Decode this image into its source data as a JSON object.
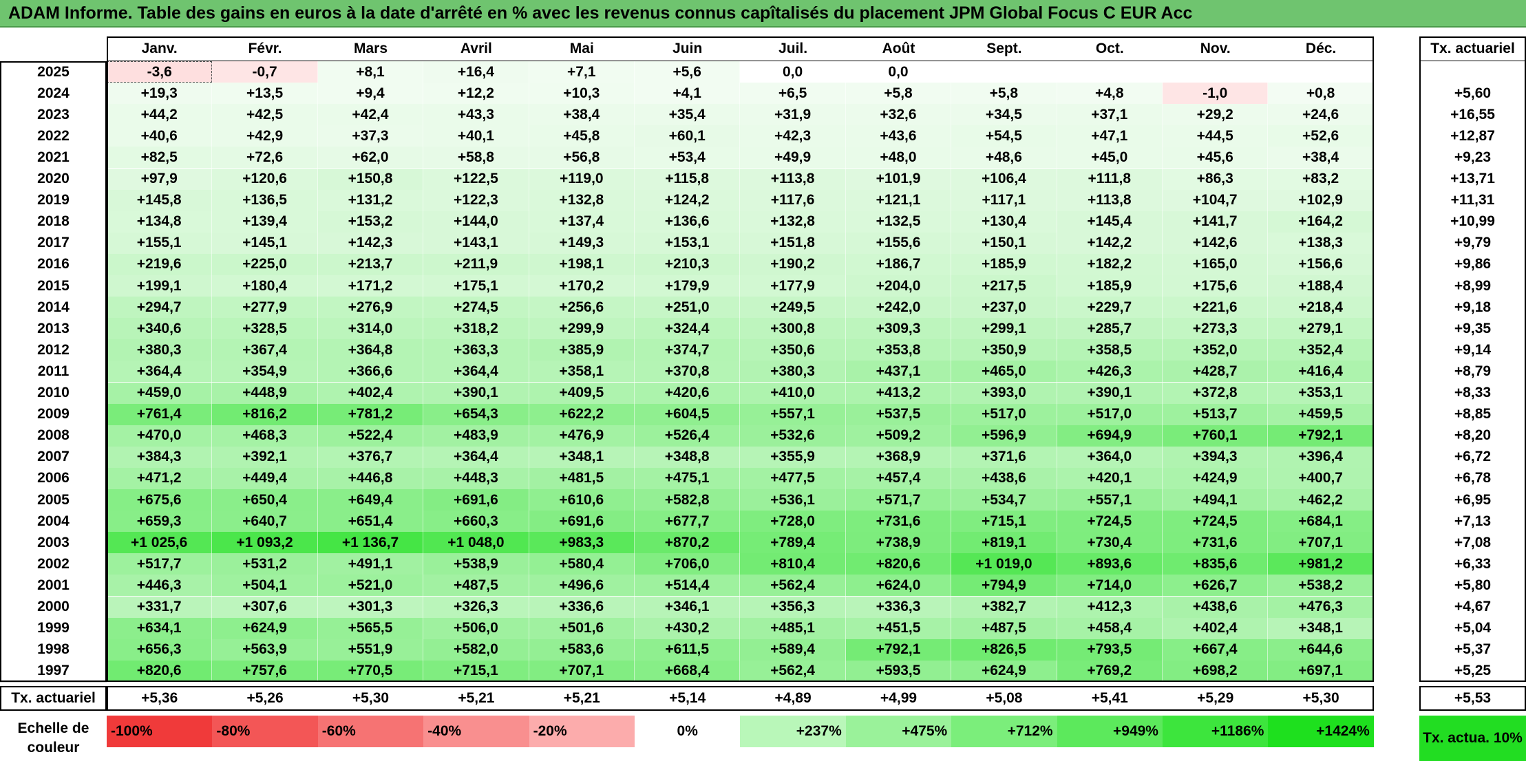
{
  "title": "ADAM Informe. Table des gains en euros à la date d'arrêté en % avec les revenus connus capîtalisés du placement JPM Global Focus C EUR Acc",
  "chart_data": {
    "type": "table",
    "columns": [
      "Janv.",
      "Févr.",
      "Mars",
      "Avril",
      "Mai",
      "Juin",
      "Juil.",
      "Août",
      "Sept.",
      "Oct.",
      "Nov.",
      "Déc."
    ],
    "rate_header": "Tx. actuariel",
    "rows": [
      {
        "year": "2025",
        "cells": [
          "-3,6",
          "-0,7",
          "+8,1",
          "+16,4",
          "+7,1",
          "+5,6",
          "0,0",
          "0,0",
          "",
          "",
          "",
          ""
        ],
        "rate": ""
      },
      {
        "year": "2024",
        "cells": [
          "+19,3",
          "+13,5",
          "+9,4",
          "+12,2",
          "+10,3",
          "+4,1",
          "+6,5",
          "+5,8",
          "+5,8",
          "+4,8",
          "-1,0",
          "+0,8"
        ],
        "rate": "+5,60"
      },
      {
        "year": "2023",
        "cells": [
          "+44,2",
          "+42,5",
          "+42,4",
          "+43,3",
          "+38,4",
          "+35,4",
          "+31,9",
          "+32,6",
          "+34,5",
          "+37,1",
          "+29,2",
          "+24,6"
        ],
        "rate": "+16,55"
      },
      {
        "year": "2022",
        "cells": [
          "+40,6",
          "+42,9",
          "+37,3",
          "+40,1",
          "+45,8",
          "+60,1",
          "+42,3",
          "+43,6",
          "+54,5",
          "+47,1",
          "+44,5",
          "+52,6"
        ],
        "rate": "+12,87"
      },
      {
        "year": "2021",
        "cells": [
          "+82,5",
          "+72,6",
          "+62,0",
          "+58,8",
          "+56,8",
          "+53,4",
          "+49,9",
          "+48,0",
          "+48,6",
          "+45,0",
          "+45,6",
          "+38,4"
        ],
        "rate": "+9,23"
      },
      {
        "year": "2020",
        "cells": [
          "+97,9",
          "+120,6",
          "+150,8",
          "+122,5",
          "+119,0",
          "+115,8",
          "+113,8",
          "+101,9",
          "+106,4",
          "+111,8",
          "+86,3",
          "+83,2"
        ],
        "rate": "+13,71"
      },
      {
        "year": "2019",
        "cells": [
          "+145,8",
          "+136,5",
          "+131,2",
          "+122,3",
          "+132,8",
          "+124,2",
          "+117,6",
          "+121,1",
          "+117,1",
          "+113,8",
          "+104,7",
          "+102,9"
        ],
        "rate": "+11,31"
      },
      {
        "year": "2018",
        "cells": [
          "+134,8",
          "+139,4",
          "+153,2",
          "+144,0",
          "+137,4",
          "+136,6",
          "+132,8",
          "+132,5",
          "+130,4",
          "+145,4",
          "+141,7",
          "+164,2"
        ],
        "rate": "+10,99"
      },
      {
        "year": "2017",
        "cells": [
          "+155,1",
          "+145,1",
          "+142,3",
          "+143,1",
          "+149,3",
          "+153,1",
          "+151,8",
          "+155,6",
          "+150,1",
          "+142,2",
          "+142,6",
          "+138,3"
        ],
        "rate": "+9,79"
      },
      {
        "year": "2016",
        "cells": [
          "+219,6",
          "+225,0",
          "+213,7",
          "+211,9",
          "+198,1",
          "+210,3",
          "+190,2",
          "+186,7",
          "+185,9",
          "+182,2",
          "+165,0",
          "+156,6"
        ],
        "rate": "+9,86"
      },
      {
        "year": "2015",
        "cells": [
          "+199,1",
          "+180,4",
          "+171,2",
          "+175,1",
          "+170,2",
          "+179,9",
          "+177,9",
          "+204,0",
          "+217,5",
          "+185,9",
          "+175,6",
          "+188,4"
        ],
        "rate": "+8,99"
      },
      {
        "year": "2014",
        "cells": [
          "+294,7",
          "+277,9",
          "+276,9",
          "+274,5",
          "+256,6",
          "+251,0",
          "+249,5",
          "+242,0",
          "+237,0",
          "+229,7",
          "+221,6",
          "+218,4"
        ],
        "rate": "+9,18"
      },
      {
        "year": "2013",
        "cells": [
          "+340,6",
          "+328,5",
          "+314,0",
          "+318,2",
          "+299,9",
          "+324,4",
          "+300,8",
          "+309,3",
          "+299,1",
          "+285,7",
          "+273,3",
          "+279,1"
        ],
        "rate": "+9,35"
      },
      {
        "year": "2012",
        "cells": [
          "+380,3",
          "+367,4",
          "+364,8",
          "+363,3",
          "+385,9",
          "+374,7",
          "+350,6",
          "+353,8",
          "+350,9",
          "+358,5",
          "+352,0",
          "+352,4"
        ],
        "rate": "+9,14"
      },
      {
        "year": "2011",
        "cells": [
          "+364,4",
          "+354,9",
          "+366,6",
          "+364,4",
          "+358,1",
          "+370,8",
          "+380,3",
          "+437,1",
          "+465,0",
          "+426,3",
          "+428,7",
          "+416,4"
        ],
        "rate": "+8,79"
      },
      {
        "year": "2010",
        "cells": [
          "+459,0",
          "+448,9",
          "+402,4",
          "+390,1",
          "+409,5",
          "+420,6",
          "+410,0",
          "+413,2",
          "+393,0",
          "+390,1",
          "+372,8",
          "+353,1"
        ],
        "rate": "+8,33"
      },
      {
        "year": "2009",
        "cells": [
          "+761,4",
          "+816,2",
          "+781,2",
          "+654,3",
          "+622,2",
          "+604,5",
          "+557,1",
          "+537,5",
          "+517,0",
          "+517,0",
          "+513,7",
          "+459,5"
        ],
        "rate": "+8,85"
      },
      {
        "year": "2008",
        "cells": [
          "+470,0",
          "+468,3",
          "+522,4",
          "+483,9",
          "+476,9",
          "+526,4",
          "+532,6",
          "+509,2",
          "+596,9",
          "+694,9",
          "+760,1",
          "+792,1"
        ],
        "rate": "+8,20"
      },
      {
        "year": "2007",
        "cells": [
          "+384,3",
          "+392,1",
          "+376,7",
          "+364,4",
          "+348,1",
          "+348,8",
          "+355,9",
          "+368,9",
          "+371,6",
          "+364,0",
          "+394,3",
          "+396,4"
        ],
        "rate": "+6,72"
      },
      {
        "year": "2006",
        "cells": [
          "+471,2",
          "+449,4",
          "+446,8",
          "+448,3",
          "+481,5",
          "+475,1",
          "+477,5",
          "+457,4",
          "+438,6",
          "+420,1",
          "+424,9",
          "+400,7"
        ],
        "rate": "+6,78"
      },
      {
        "year": "2005",
        "cells": [
          "+675,6",
          "+650,4",
          "+649,4",
          "+691,6",
          "+610,6",
          "+582,8",
          "+536,1",
          "+571,7",
          "+534,7",
          "+557,1",
          "+494,1",
          "+462,2"
        ],
        "rate": "+6,95"
      },
      {
        "year": "2004",
        "cells": [
          "+659,3",
          "+640,7",
          "+651,4",
          "+660,3",
          "+691,6",
          "+677,7",
          "+728,0",
          "+731,6",
          "+715,1",
          "+724,5",
          "+724,5",
          "+684,1"
        ],
        "rate": "+7,13"
      },
      {
        "year": "2003",
        "cells": [
          "+1 025,6",
          "+1 093,2",
          "+1 136,7",
          "+1 048,0",
          "+983,3",
          "+870,2",
          "+789,4",
          "+738,9",
          "+819,1",
          "+730,4",
          "+731,6",
          "+707,1"
        ],
        "rate": "+7,08"
      },
      {
        "year": "2002",
        "cells": [
          "+517,7",
          "+531,2",
          "+491,1",
          "+538,9",
          "+580,4",
          "+706,0",
          "+810,4",
          "+820,6",
          "+1 019,0",
          "+893,6",
          "+835,6",
          "+981,2"
        ],
        "rate": "+6,33"
      },
      {
        "year": "2001",
        "cells": [
          "+446,3",
          "+504,1",
          "+521,0",
          "+487,5",
          "+496,6",
          "+514,4",
          "+562,4",
          "+624,0",
          "+794,9",
          "+714,0",
          "+626,7",
          "+538,2"
        ],
        "rate": "+5,80"
      },
      {
        "year": "2000",
        "cells": [
          "+331,7",
          "+307,6",
          "+301,3",
          "+326,3",
          "+336,6",
          "+346,1",
          "+356,3",
          "+336,3",
          "+382,7",
          "+412,3",
          "+438,6",
          "+476,3"
        ],
        "rate": "+4,67"
      },
      {
        "year": "1999",
        "cells": [
          "+634,1",
          "+624,9",
          "+565,5",
          "+506,0",
          "+501,6",
          "+430,2",
          "+485,1",
          "+451,5",
          "+487,5",
          "+458,4",
          "+402,4",
          "+348,1"
        ],
        "rate": "+5,04"
      },
      {
        "year": "1998",
        "cells": [
          "+656,3",
          "+563,9",
          "+551,9",
          "+582,0",
          "+583,6",
          "+611,5",
          "+589,4",
          "+792,1",
          "+826,5",
          "+793,5",
          "+667,4",
          "+644,6"
        ],
        "rate": "+5,37"
      },
      {
        "year": "1997",
        "cells": [
          "+820,6",
          "+757,6",
          "+770,5",
          "+715,1",
          "+707,1",
          "+668,4",
          "+562,4",
          "+593,5",
          "+624,9",
          "+769,2",
          "+698,2",
          "+697,1"
        ],
        "rate": "+5,25"
      }
    ],
    "footer": {
      "label": "Tx. actuariel",
      "cells": [
        "+5,36",
        "+5,26",
        "+5,30",
        "+5,21",
        "+5,21",
        "+5,14",
        "+4,89",
        "+4,99",
        "+5,08",
        "+5,41",
        "+5,29",
        "+5,30"
      ],
      "rate": "+5,53"
    },
    "scale": {
      "label": "Echelle de couleur",
      "items": [
        {
          "text": "-100%",
          "value": -100
        },
        {
          "text": "-80%",
          "value": -80
        },
        {
          "text": "-60%",
          "value": -60
        },
        {
          "text": "-40%",
          "value": -40
        },
        {
          "text": "-20%",
          "value": -20
        },
        {
          "text": "0%",
          "value": 0
        },
        {
          "text": "+237%",
          "value": 237
        },
        {
          "text": "+475%",
          "value": 475
        },
        {
          "text": "+712%",
          "value": 712
        },
        {
          "text": "+949%",
          "value": 949
        },
        {
          "text": "+1186%",
          "value": 1186
        },
        {
          "text": "+1424%",
          "value": 1424
        }
      ],
      "rate_label": "Tx. actua. 10%"
    },
    "colors": {
      "title_bg": "#6fc46f",
      "positive_max": "#1ee01e",
      "negative_max": "#f03a3a",
      "rate_scale_bg": "#22dd22"
    }
  }
}
